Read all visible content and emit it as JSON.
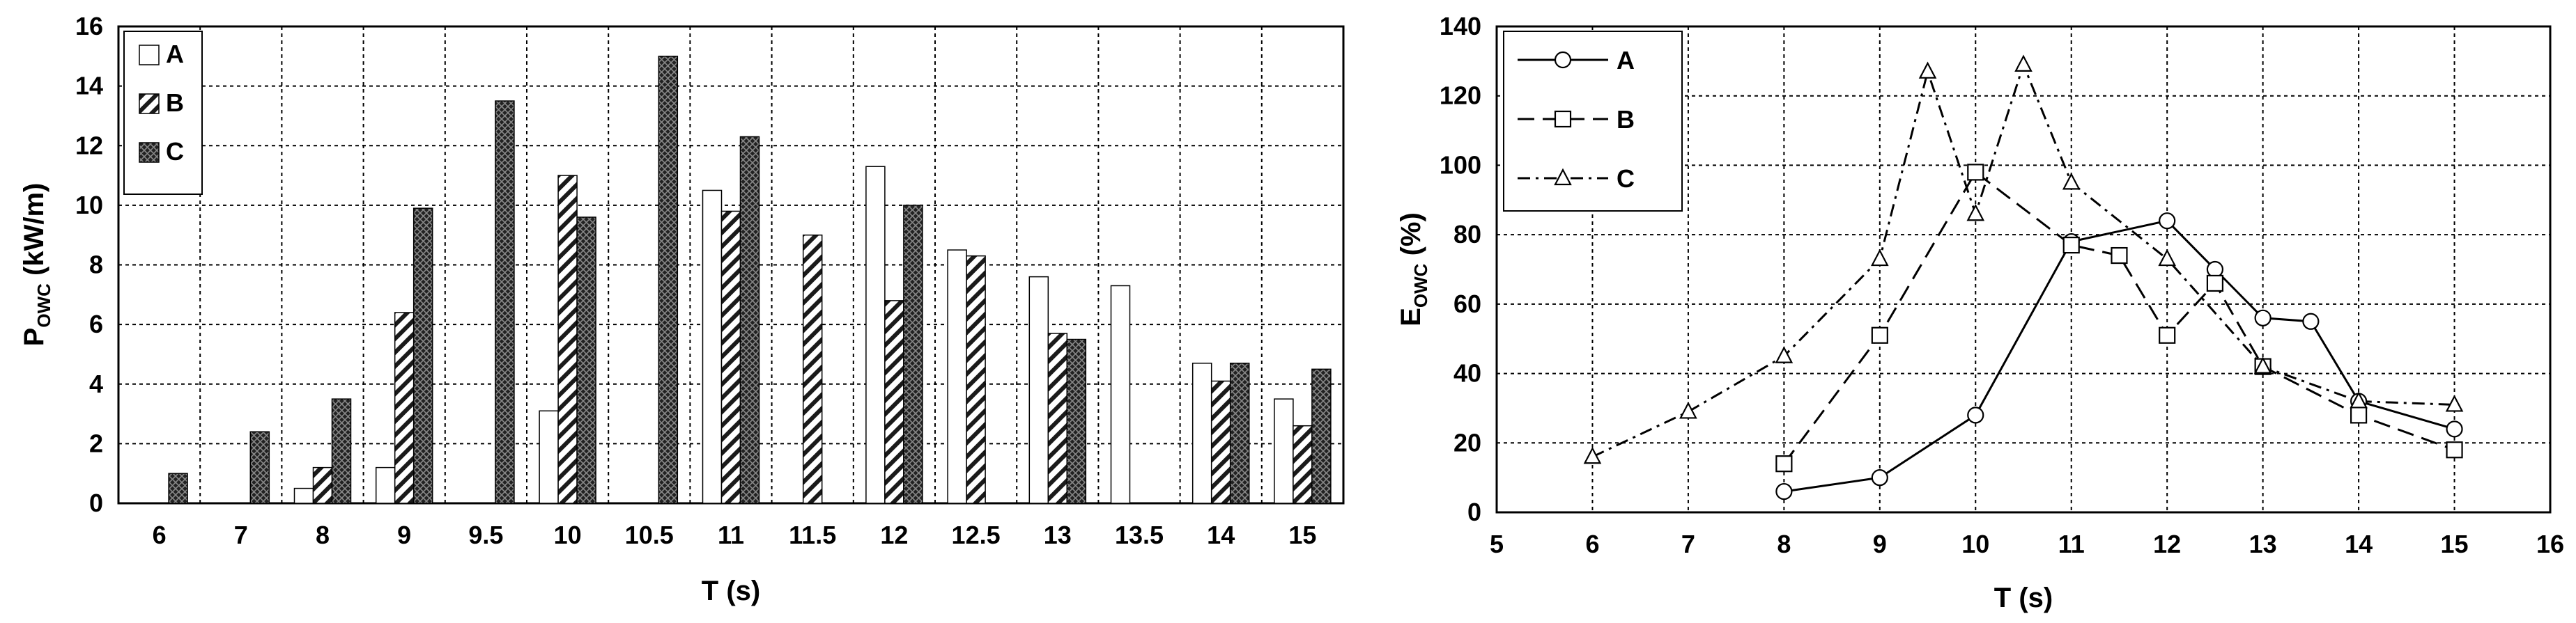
{
  "chart_data": [
    {
      "type": "bar",
      "categories": [
        "6",
        "7",
        "8",
        "9",
        "9.5",
        "10",
        "10.5",
        "11",
        "11.5",
        "12",
        "12.5",
        "13",
        "13.5",
        "14",
        "15"
      ],
      "series": [
        {
          "name": "A",
          "values": [
            0,
            0,
            0.5,
            1.2,
            0,
            3.1,
            0,
            10.5,
            0,
            11.3,
            8.5,
            7.6,
            7.3,
            4.7,
            3.5
          ]
        },
        {
          "name": "B",
          "values": [
            0,
            0,
            1.2,
            6.4,
            0,
            11.0,
            0,
            9.8,
            9.0,
            6.8,
            8.3,
            5.7,
            0,
            4.1,
            2.6
          ]
        },
        {
          "name": "C",
          "values": [
            1.0,
            2.4,
            3.5,
            9.9,
            13.5,
            9.6,
            15.0,
            12.3,
            0,
            10.0,
            0,
            5.5,
            0,
            4.7,
            4.5
          ]
        }
      ],
      "xlabel": "T (s)",
      "ylabel": "P",
      "ylabel_sub": "OWC",
      "ylabel_unit": " (kW/m)",
      "ylim": [
        0,
        16
      ],
      "yticks": [
        0,
        2,
        4,
        6,
        8,
        10,
        12,
        14,
        16
      ],
      "grid": true,
      "legend": "top-left",
      "fills": {
        "A": "#ffffff",
        "B": "hatch",
        "C": "crosshatch"
      }
    },
    {
      "type": "line",
      "series": [
        {
          "name": "A",
          "marker": "circle",
          "dash": "solid",
          "x": [
            8,
            9,
            10,
            11,
            12,
            12.5,
            13,
            13.5,
            14,
            15
          ],
          "y": [
            6,
            10,
            28,
            78,
            84,
            70,
            56,
            55,
            32,
            24
          ]
        },
        {
          "name": "B",
          "marker": "square",
          "dash": "dashed",
          "x": [
            8,
            9,
            10,
            11,
            11.5,
            12,
            12.5,
            13,
            14,
            15
          ],
          "y": [
            14,
            51,
            98,
            77,
            74,
            51,
            66,
            42,
            28,
            18
          ]
        },
        {
          "name": "C",
          "marker": "triangle",
          "dash": "dashdot",
          "x": [
            6,
            7,
            8,
            9,
            9.5,
            10,
            10.5,
            11,
            12,
            13,
            14,
            15
          ],
          "y": [
            16,
            29,
            45,
            73,
            127,
            86,
            129,
            95,
            73,
            42,
            32,
            31
          ]
        }
      ],
      "xlabel": "T (s)",
      "ylabel": "E",
      "ylabel_sub": "OWC",
      "ylabel_unit": " (%)",
      "xlim": [
        5,
        16
      ],
      "ylim": [
        0,
        140
      ],
      "xticks": [
        5,
        6,
        7,
        8,
        9,
        10,
        11,
        12,
        13,
        14,
        15,
        16
      ],
      "yticks": [
        0,
        20,
        40,
        60,
        80,
        100,
        120,
        140
      ],
      "grid": true,
      "legend": "top-left"
    }
  ]
}
